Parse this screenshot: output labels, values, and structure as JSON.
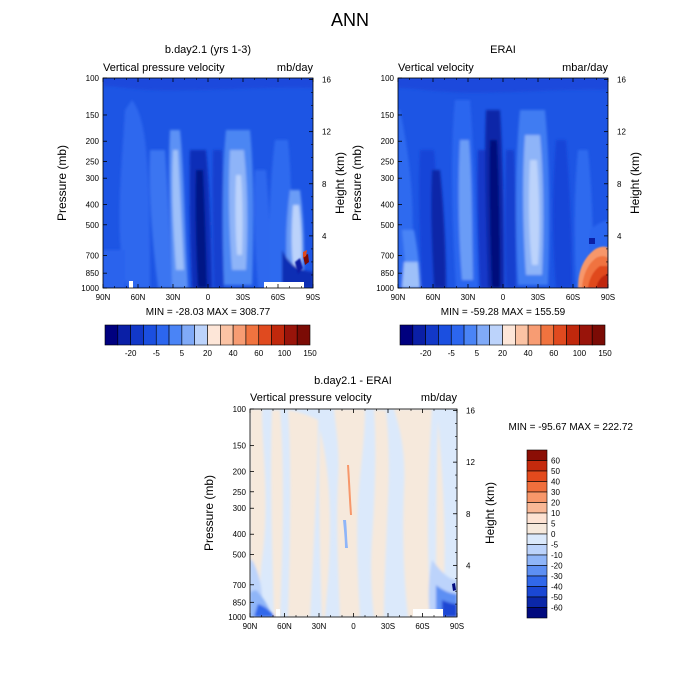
{
  "figure": {
    "title": "ANN"
  },
  "chart_data": [
    {
      "type": "heatmap",
      "title": "b.day2.1 (yrs 1-3)",
      "left_string": "Vertical pressure velocity",
      "right_string": "mb/day",
      "ylabel": "Pressure (mb)",
      "ylabel_right": "Height (km)",
      "x_ticks": [
        "90N",
        "60N",
        "30N",
        "0",
        "30S",
        "60S",
        "90S"
      ],
      "y_ticks": [
        "100",
        "150",
        "200",
        "250",
        "300",
        "400",
        "500",
        "700",
        "850",
        "1000"
      ],
      "y_ticks_right": [
        "16",
        "12",
        "8",
        "4"
      ],
      "min_max": "MIN = -28.03   MAX = 308.77",
      "colorbar_labels": [
        "-20",
        "-5",
        "5",
        "20",
        "40",
        "60",
        "100",
        "150"
      ]
    },
    {
      "type": "heatmap",
      "title": "ERAI",
      "left_string": "Vertical velocity",
      "right_string": "mbar/day",
      "ylabel": "Pressure (mb)",
      "ylabel_right": "Height (km)",
      "x_ticks": [
        "90N",
        "60N",
        "30N",
        "0",
        "30S",
        "60S",
        "90S"
      ],
      "y_ticks": [
        "100",
        "150",
        "200",
        "250",
        "300",
        "400",
        "500",
        "700",
        "850",
        "1000"
      ],
      "y_ticks_right": [
        "16",
        "12",
        "8",
        "4"
      ],
      "min_max": "MIN = -59.28   MAX = 155.59",
      "colorbar_labels": [
        "-20",
        "-5",
        "5",
        "20",
        "40",
        "60",
        "100",
        "150"
      ]
    },
    {
      "type": "heatmap",
      "title": "b.day2.1 - ERAI",
      "left_string": "Vertical pressure velocity",
      "right_string": "mb/day",
      "ylabel": "Pressure (mb)",
      "ylabel_right": "Height (km)",
      "x_ticks": [
        "90N",
        "60N",
        "30N",
        "0",
        "30S",
        "60S",
        "90S"
      ],
      "y_ticks": [
        "100",
        "150",
        "200",
        "250",
        "300",
        "400",
        "500",
        "700",
        "850",
        "1000"
      ],
      "y_ticks_right": [
        "16",
        "12",
        "8",
        "4"
      ],
      "min_max": "MIN = -95.67  MAX = 222.72",
      "colorbar_labels": [
        "60",
        "50",
        "40",
        "30",
        "20",
        "10",
        "5",
        "0",
        "-5",
        "-10",
        "-20",
        "-30",
        "-40",
        "-50",
        "-60"
      ]
    }
  ],
  "colors": {
    "main_scale": [
      "#00007f",
      "#0a1fa6",
      "#1238c8",
      "#1b4fe0",
      "#2c66ef",
      "#4a84f6",
      "#80aaf8",
      "#bcd3fb",
      "#fde6d8",
      "#fbc3a4",
      "#f79c73",
      "#f0733f",
      "#e04a1f",
      "#c0280c",
      "#99140a",
      "#7b0b05"
    ],
    "diff_scale_top_to_bottom": [
      "#8b0e05",
      "#c52a0d",
      "#e34a1d",
      "#f06f3c",
      "#f7976a",
      "#f9b896",
      "#fde2d2",
      "#f6e9dc",
      "#dbe9fb",
      "#bcd3fb",
      "#8fb5f8",
      "#5d8ff3",
      "#3168ea",
      "#1a47d4",
      "#0b27a8",
      "#010a7e"
    ]
  }
}
